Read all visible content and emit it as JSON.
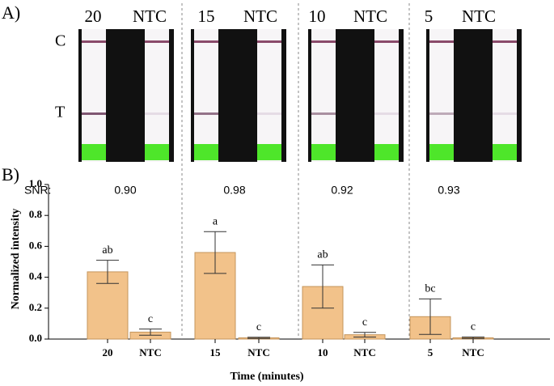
{
  "panel_a": {
    "label": "A)",
    "strip_labels": [
      "20",
      "NTC",
      "15",
      "NTC",
      "10",
      "NTC",
      "5",
      "NTC"
    ],
    "line_labels": [
      "C",
      "T"
    ]
  },
  "chart_data": {
    "type": "bar",
    "panel_label": "B)",
    "ylabel": "Normalized intensity",
    "xlabel": "Time (minutes)",
    "categories": [
      "20",
      "NTC",
      "15",
      "NTC",
      "10",
      "NTC",
      "5",
      "NTC"
    ],
    "values": [
      0.435,
      0.045,
      0.56,
      0.008,
      0.34,
      0.028,
      0.145,
      0.008
    ],
    "errors": [
      0.075,
      0.02,
      0.135,
      0.004,
      0.14,
      0.015,
      0.115,
      0.005
    ],
    "letters": [
      "ab",
      "c",
      "a",
      "c",
      "ab",
      "c",
      "bc",
      "c"
    ],
    "snr_label": "SNR:",
    "snr_values": [
      "0.90",
      "0.98",
      "0.92",
      "0.93"
    ],
    "color": "#f2c28a",
    "edge_color": "#c4955c",
    "ylim": [
      0,
      1
    ],
    "yticks": [
      {
        "value": 0,
        "label": "0.0"
      },
      0.2,
      0.4,
      0.6,
      0.8,
      {
        "value": 1,
        "label": "1.0"
      }
    ]
  }
}
